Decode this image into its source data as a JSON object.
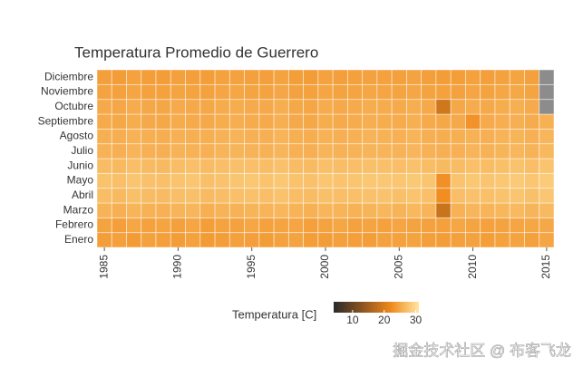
{
  "chart_data": {
    "type": "heatmap",
    "title": "Temperatura Promedio de Guerrero",
    "x": [
      1985,
      1986,
      1987,
      1988,
      1989,
      1990,
      1991,
      1992,
      1993,
      1994,
      1995,
      1996,
      1997,
      1998,
      1999,
      2000,
      2001,
      2002,
      2003,
      2004,
      2005,
      2006,
      2007,
      2008,
      2009,
      2010,
      2011,
      2012,
      2013,
      2014,
      2015
    ],
    "xlim": [
      1984.5,
      2015.5
    ],
    "xticks": [
      1985,
      1990,
      1995,
      2000,
      2005,
      2010,
      2015
    ],
    "y": [
      "Enero",
      "Febrero",
      "Marzo",
      "Abril",
      "Mayo",
      "Junio",
      "Julio",
      "Agosto",
      "Septiembre",
      "Octubre",
      "Noviembre",
      "Diciembre"
    ],
    "values": [
      [
        24.1,
        24.3,
        23.9,
        24.5,
        24.2,
        24.0,
        24.4,
        23.8,
        24.1,
        24.3,
        24.2,
        24.0,
        24.5,
        24.6,
        24.1,
        24.0,
        24.3,
        24.2,
        24.1,
        24.5,
        24.4,
        24.6,
        24.2,
        24.0,
        24.3,
        24.5,
        24.1,
        24.4,
        24.6,
        24.3,
        24.8
      ],
      [
        24.6,
        24.2,
        24.9,
        24.4,
        24.7,
        24.3,
        24.8,
        24.1,
        24.6,
        24.5,
        24.9,
        24.4,
        24.7,
        24.8,
        24.3,
        24.6,
        24.9,
        24.5,
        24.7,
        24.4,
        24.8,
        24.6,
        24.5,
        24.3,
        24.9,
        24.7,
        24.4,
        24.6,
        24.8,
        24.9,
        25.1
      ],
      [
        26.1,
        25.8,
        26.3,
        26.0,
        25.9,
        26.2,
        26.4,
        25.7,
        26.1,
        26.0,
        26.3,
        26.2,
        26.5,
        26.1,
        25.9,
        26.4,
        26.2,
        26.0,
        26.3,
        26.5,
        26.1,
        26.6,
        26.2,
        18.5,
        26.0,
        26.4,
        26.2,
        26.5,
        26.7,
        26.3,
        26.8
      ],
      [
        27.1,
        26.8,
        27.3,
        27.0,
        26.9,
        27.2,
        27.4,
        26.9,
        27.1,
        27.3,
        27.5,
        27.2,
        27.6,
        27.1,
        27.0,
        27.4,
        27.2,
        27.3,
        27.5,
        27.6,
        27.4,
        27.7,
        27.3,
        22.5,
        27.2,
        27.5,
        27.3,
        27.6,
        27.8,
        27.4,
        27.9
      ],
      [
        27.6,
        27.3,
        27.8,
        27.5,
        27.4,
        27.7,
        27.9,
        27.4,
        27.6,
        27.8,
        28.0,
        27.7,
        28.1,
        27.6,
        27.5,
        27.9,
        27.7,
        27.8,
        28.0,
        28.1,
        27.9,
        28.2,
        27.8,
        22.8,
        27.7,
        28.0,
        27.8,
        28.1,
        28.3,
        27.9,
        28.4
      ],
      [
        27.0,
        26.8,
        27.2,
        26.9,
        26.8,
        27.1,
        27.3,
        27.0,
        27.2,
        27.4,
        27.3,
        27.1,
        27.5,
        27.0,
        26.9,
        27.3,
        27.1,
        27.2,
        27.4,
        27.3,
        27.2,
        27.5,
        27.1,
        26.8,
        27.0,
        27.3,
        27.1,
        27.4,
        27.6,
        27.2,
        27.7
      ],
      [
        26.0,
        25.8,
        26.2,
        25.9,
        25.8,
        26.1,
        26.0,
        25.9,
        26.2,
        26.3,
        26.1,
        26.0,
        26.4,
        25.9,
        25.8,
        26.2,
        26.0,
        26.1,
        26.3,
        26.2,
        26.1,
        26.4,
        26.0,
        25.8,
        25.9,
        26.2,
        26.0,
        26.3,
        26.5,
        26.1,
        26.6
      ],
      [
        25.8,
        25.6,
        26.0,
        25.7,
        25.6,
        25.9,
        25.8,
        25.7,
        26.0,
        26.1,
        25.9,
        25.8,
        26.2,
        25.7,
        25.6,
        26.0,
        25.8,
        25.9,
        26.1,
        26.0,
        25.9,
        26.2,
        25.8,
        25.6,
        25.7,
        26.0,
        25.8,
        26.1,
        26.3,
        25.9,
        26.4
      ],
      [
        25.3,
        25.1,
        25.5,
        25.2,
        25.1,
        25.4,
        25.3,
        25.2,
        25.5,
        25.6,
        25.4,
        25.3,
        25.7,
        25.2,
        25.1,
        25.5,
        25.3,
        25.4,
        25.6,
        25.5,
        25.4,
        25.7,
        25.3,
        25.1,
        25.2,
        23.0,
        25.3,
        25.6,
        25.8,
        25.4,
        25.9
      ],
      [
        25.2,
        25.0,
        25.4,
        25.1,
        25.0,
        25.3,
        25.2,
        25.1,
        25.4,
        25.5,
        25.3,
        25.2,
        25.6,
        25.1,
        25.0,
        25.4,
        25.2,
        25.3,
        25.5,
        25.4,
        25.3,
        25.6,
        25.2,
        19.0,
        25.1,
        25.4,
        25.2,
        25.5,
        25.7,
        25.3,
        null
      ],
      [
        24.6,
        24.4,
        24.8,
        24.5,
        24.4,
        24.7,
        24.6,
        24.5,
        24.8,
        24.9,
        24.7,
        24.6,
        25.0,
        24.5,
        24.4,
        24.8,
        24.6,
        24.7,
        24.9,
        24.8,
        24.7,
        25.0,
        24.6,
        24.4,
        24.5,
        24.8,
        24.6,
        24.9,
        25.1,
        24.7,
        null
      ],
      [
        24.2,
        24.0,
        24.4,
        24.1,
        24.0,
        24.3,
        24.2,
        24.1,
        24.4,
        24.5,
        24.3,
        24.2,
        24.6,
        24.1,
        24.0,
        24.4,
        24.2,
        24.3,
        24.5,
        24.4,
        24.3,
        24.6,
        24.2,
        24.0,
        24.1,
        24.4,
        24.2,
        24.5,
        24.7,
        24.3,
        null
      ]
    ],
    "colorbar": {
      "title": "Temperatura [C]",
      "lim": [
        4,
        31
      ],
      "ticks": [
        10,
        20,
        30
      ],
      "colors": [
        "#2a2a2a",
        "#8a5420",
        "#f0881a",
        "#ffe6a0"
      ]
    },
    "na_color": "#8c8c8c"
  },
  "watermark": "掘金技术社区 @ 布客飞龙"
}
